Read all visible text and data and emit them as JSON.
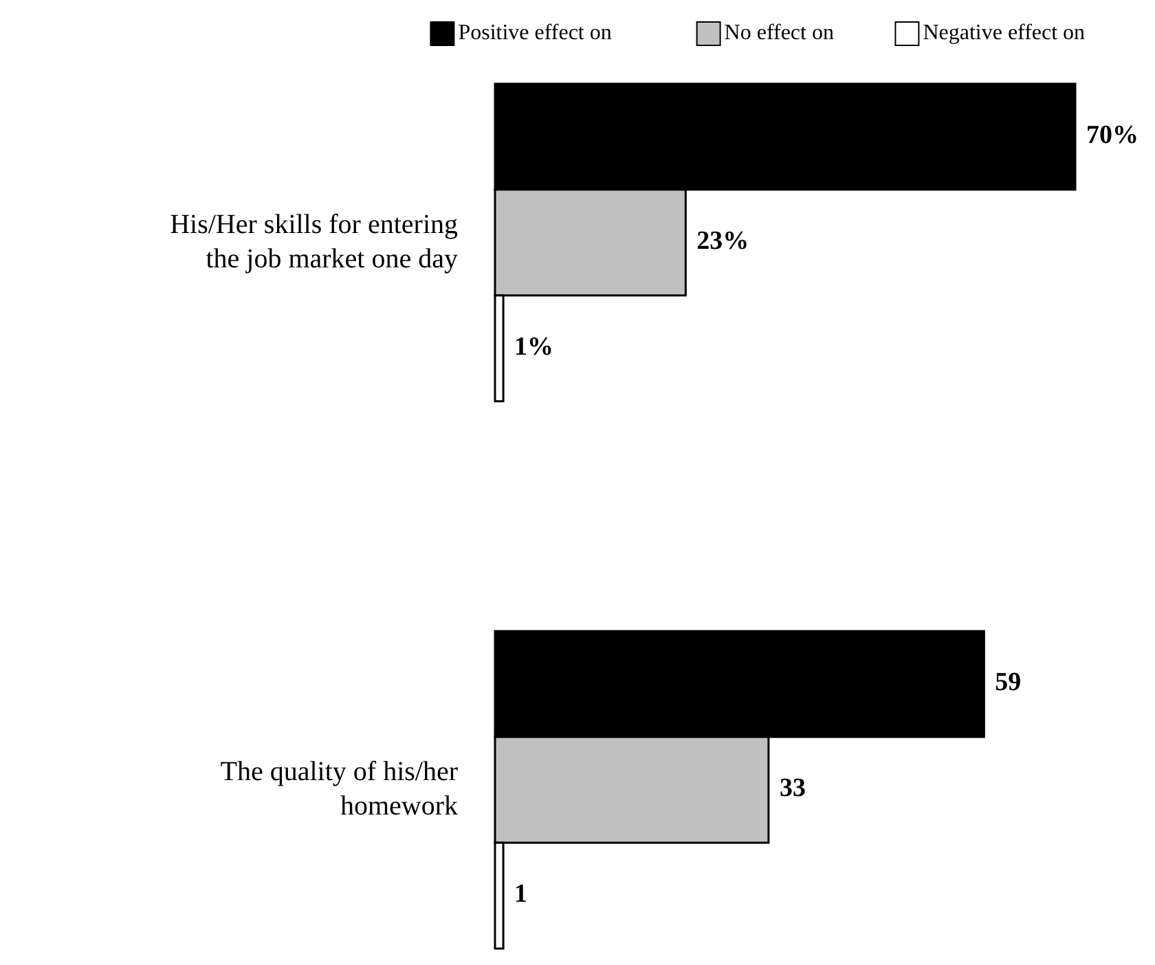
{
  "chart_data": {
    "type": "bar",
    "orientation": "horizontal",
    "categories": [
      "His/Her skills for entering the job market one day",
      "The quality of his/her homework"
    ],
    "series": [
      {
        "name": "Positive effect on",
        "color": "#000000",
        "values": [
          70,
          59
        ],
        "value_labels": [
          "70%",
          "59"
        ]
      },
      {
        "name": "No effect on",
        "color": "#c0c0c0",
        "values": [
          23,
          33
        ],
        "value_labels": [
          "23%",
          "33"
        ]
      },
      {
        "name": "Negative effect on",
        "color": "#ffffff",
        "values": [
          1,
          1
        ],
        "value_labels": [
          "1%",
          "1"
        ]
      }
    ],
    "legend": "top"
  }
}
